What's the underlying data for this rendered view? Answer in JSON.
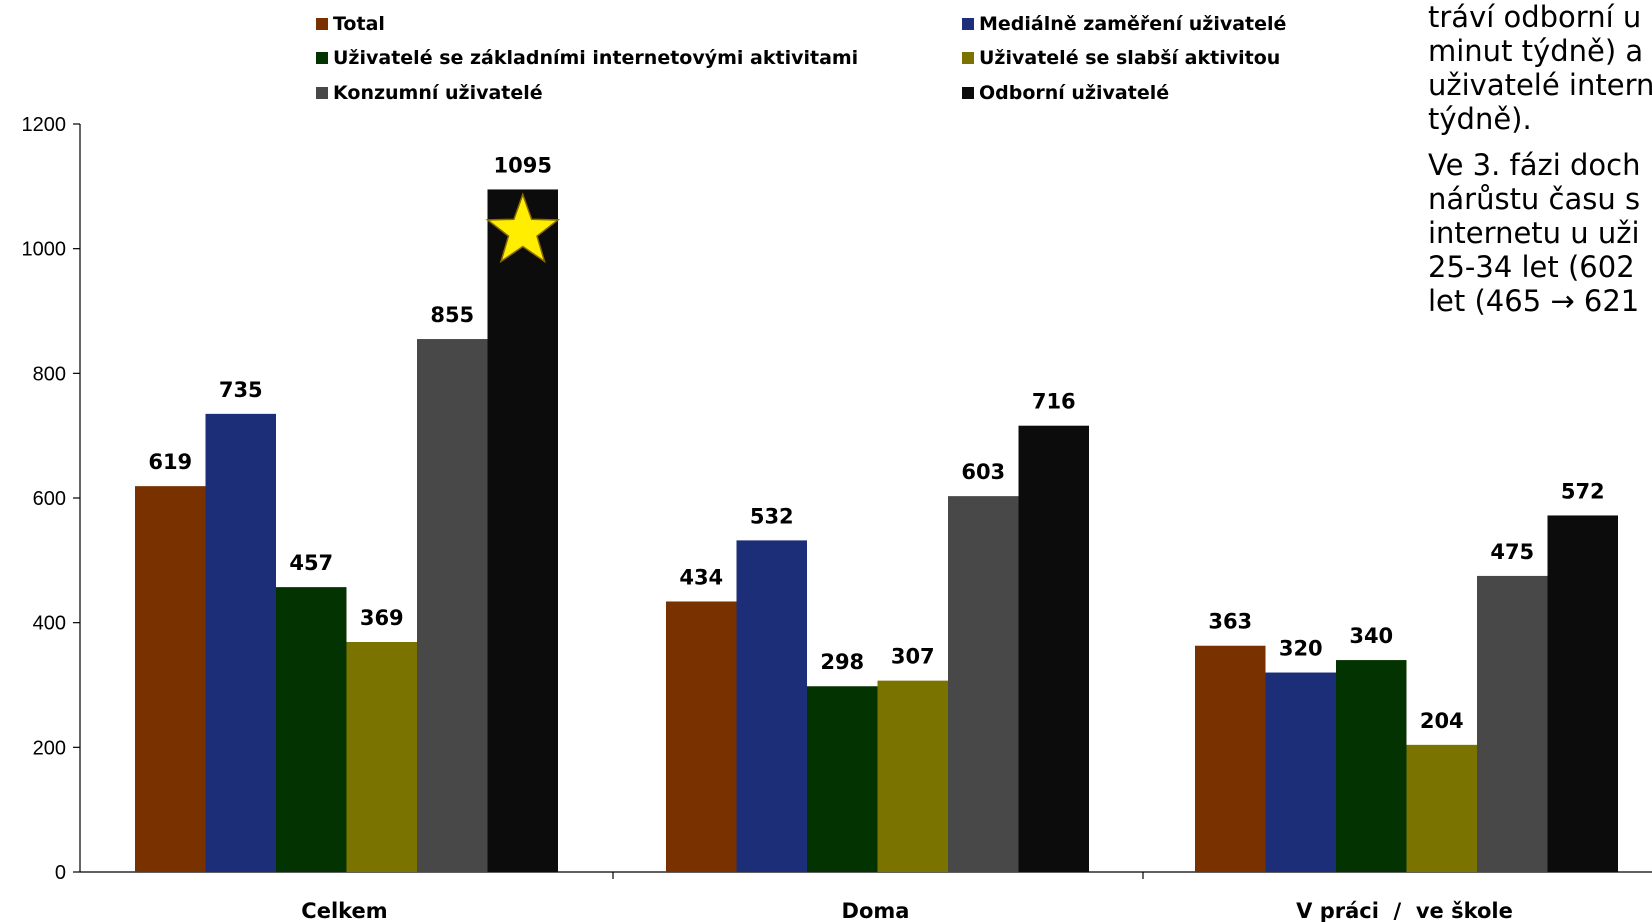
{
  "chart_data": {
    "type": "bar",
    "categories": [
      "Celkem",
      "Doma",
      "V práci  /  ve škole"
    ],
    "series": [
      {
        "name": "Total",
        "color": "#7a3100",
        "values": [
          619,
          434,
          363
        ]
      },
      {
        "name": "Mediálně zaměření uživatelé",
        "color": "#1c2e78",
        "values": [
          735,
          532,
          320
        ]
      },
      {
        "name": "Uživatelé se základními internetovými aktivitami",
        "color": "#043302",
        "values": [
          457,
          298,
          340
        ]
      },
      {
        "name": "Uživatelé se slabší aktivitou",
        "color": "#7a7300",
        "values": [
          369,
          307,
          204
        ]
      },
      {
        "name": "Konzumní uživatelé",
        "color": "#484848",
        "values": [
          855,
          603,
          475
        ]
      },
      {
        "name": "Odborní uživatelé",
        "color": "#0c0c0c",
        "values": [
          1095,
          716,
          572
        ]
      }
    ],
    "ylim": [
      0,
      1200
    ],
    "yticks": [
      0,
      200,
      400,
      600,
      800,
      1000,
      1200
    ],
    "legend_position": "top",
    "grid": false,
    "highlight": {
      "series": "Odborní uživatelé",
      "category": "Celkem",
      "marker": "star-icon",
      "color": "#ffee00"
    }
  },
  "side_text": {
    "lines_p1": [
      "tráví odborní u",
      "minut týdně) a",
      "uživatelé intern",
      "týdně)."
    ],
    "lines_p2": [
      "Ve 3. fázi doch",
      "nárůstu času s",
      "internetu u uži",
      "25-34 let (602 ",
      "let (465 → 621"
    ]
  }
}
